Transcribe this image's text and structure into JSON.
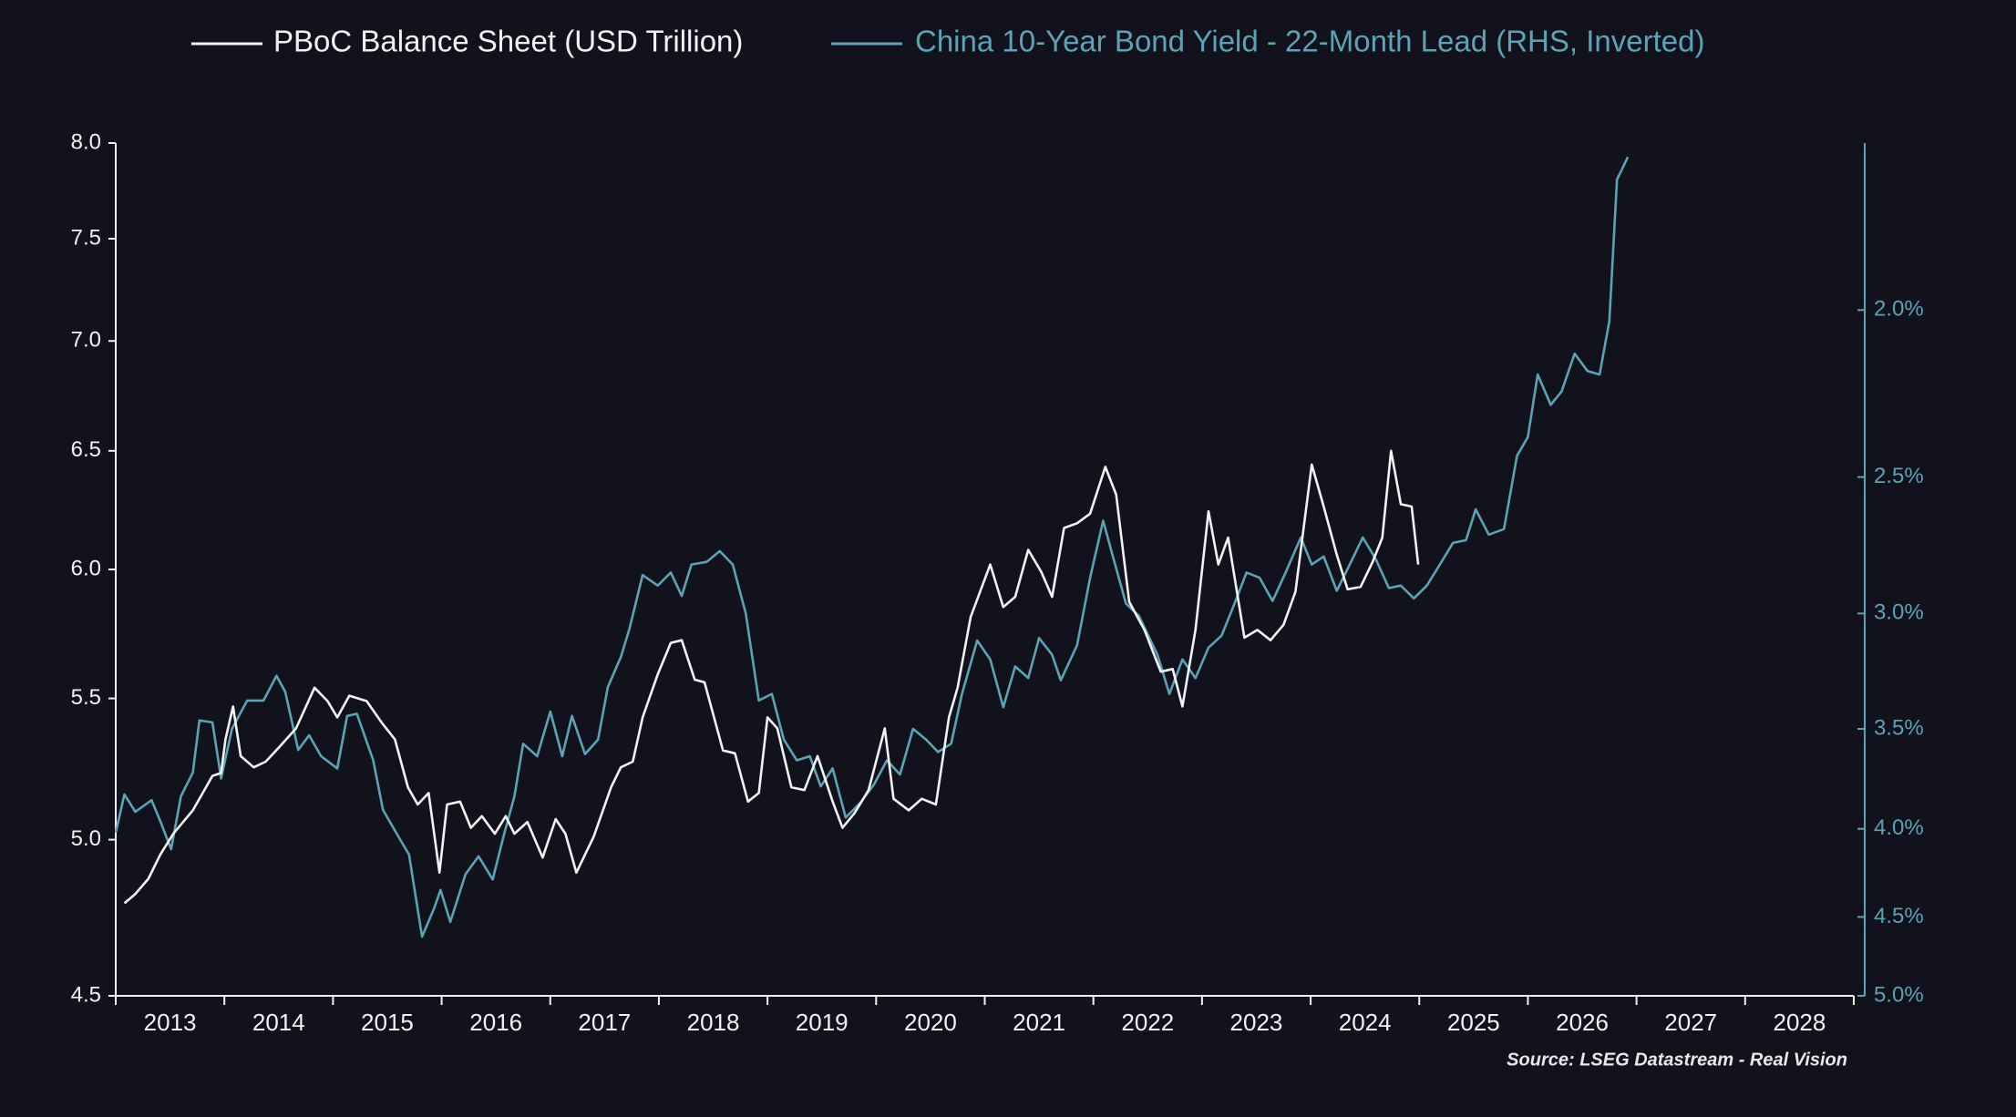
{
  "chart_data": {
    "type": "line",
    "source": "Source: LSEG Datastream - Real Vision",
    "xlim": [
      2013,
      2029
    ],
    "xticks": [
      {
        "value": 2013,
        "label": "2013"
      },
      {
        "value": 2014,
        "label": "2014"
      },
      {
        "value": 2015,
        "label": "2015"
      },
      {
        "value": 2016,
        "label": "2016"
      },
      {
        "value": 2017,
        "label": "2017"
      },
      {
        "value": 2018,
        "label": "2018"
      },
      {
        "value": 2019,
        "label": "2019"
      },
      {
        "value": 2020,
        "label": "2020"
      },
      {
        "value": 2021,
        "label": "2021"
      },
      {
        "value": 2022,
        "label": "2022"
      },
      {
        "value": 2023,
        "label": "2023"
      },
      {
        "value": 2024,
        "label": "2024"
      },
      {
        "value": 2025,
        "label": "2025"
      },
      {
        "value": 2026,
        "label": "2026"
      },
      {
        "value": 2027,
        "label": "2027"
      },
      {
        "value": 2028,
        "label": "2028"
      }
    ],
    "ylim": [
      4.5,
      8.0
    ],
    "ylog": true,
    "yticks": [
      4.5,
      {
        "value": 5.0,
        "label": "5.0"
      },
      5.5,
      {
        "value": 6.0,
        "label": "6.0"
      },
      6.5,
      {
        "value": 7.0,
        "label": "7.0"
      },
      7.5,
      {
        "value": 8.0,
        "label": "8.0"
      }
    ],
    "y2lim": [
      5.0,
      1.6
    ],
    "y2log": true,
    "y2ticks": [
      {
        "value": 2.0,
        "label": "2.0%"
      },
      {
        "value": 2.5,
        "label": "2.5%"
      },
      {
        "value": 3.0,
        "label": "3.0%"
      },
      {
        "value": 3.5,
        "label": "3.5%"
      },
      {
        "value": 4.0,
        "label": "4.0%"
      },
      {
        "value": 4.5,
        "label": "4.5%"
      },
      {
        "value": 5.0,
        "label": "5.0%"
      }
    ],
    "series": [
      {
        "name": "PBoC Balance Sheet (USD Trillion)",
        "color": "#f2f2f2",
        "x": [
          2013.08,
          2013.18,
          2013.3,
          2013.41,
          2013.53,
          2013.71,
          2013.89,
          2013.97,
          2014.01,
          2014.08,
          2014.15,
          2014.27,
          2014.38,
          2014.5,
          2014.66,
          2014.83,
          2014.95,
          2015.04,
          2015.15,
          2015.31,
          2015.45,
          2015.57,
          2015.69,
          2015.78,
          2015.88,
          2015.98,
          2016.05,
          2016.17,
          2016.27,
          2016.37,
          2016.49,
          2016.59,
          2016.67,
          2016.79,
          2016.93,
          2017.05,
          2017.14,
          2017.24,
          2017.4,
          2017.56,
          2017.65,
          2017.76,
          2017.85,
          2017.99,
          2018.11,
          2018.21,
          2018.33,
          2018.42,
          2018.59,
          2018.7,
          2018.82,
          2018.92,
          2019.0,
          2019.09,
          2019.22,
          2019.34,
          2019.46,
          2019.6,
          2019.69,
          2019.8,
          2019.93,
          2020.08,
          2020.16,
          2020.3,
          2020.42,
          2020.55,
          2020.67,
          2020.75,
          2020.87,
          2021.05,
          2021.17,
          2021.28,
          2021.4,
          2021.52,
          2021.62,
          2021.73,
          2021.85,
          2021.97,
          2022.11,
          2022.21,
          2022.33,
          2022.47,
          2022.62,
          2022.73,
          2022.82,
          2022.94,
          2023.06,
          2023.15,
          2023.24,
          2023.39,
          2023.51,
          2023.63,
          2023.75,
          2023.86,
          2024.01,
          2024.12,
          2024.24,
          2024.34,
          2024.46,
          2024.57,
          2024.66,
          2024.74,
          2024.83,
          2024.93,
          2024.99
        ],
        "values": [
          4.79,
          4.82,
          4.87,
          4.95,
          5.02,
          5.1,
          5.22,
          5.23,
          5.35,
          5.47,
          5.29,
          5.25,
          5.27,
          5.32,
          5.39,
          5.54,
          5.49,
          5.43,
          5.51,
          5.49,
          5.41,
          5.35,
          5.18,
          5.12,
          5.16,
          4.89,
          5.12,
          5.13,
          5.04,
          5.08,
          5.02,
          5.08,
          5.02,
          5.06,
          4.94,
          5.07,
          5.02,
          4.89,
          5.01,
          5.18,
          5.25,
          5.27,
          5.43,
          5.59,
          5.71,
          5.72,
          5.57,
          5.56,
          5.31,
          5.3,
          5.13,
          5.16,
          5.43,
          5.39,
          5.18,
          5.17,
          5.29,
          5.13,
          5.04,
          5.09,
          5.17,
          5.39,
          5.14,
          5.1,
          5.14,
          5.12,
          5.43,
          5.54,
          5.81,
          6.02,
          5.85,
          5.89,
          6.08,
          5.99,
          5.89,
          6.17,
          6.19,
          6.23,
          6.43,
          6.31,
          5.87,
          5.76,
          5.6,
          5.61,
          5.47,
          5.76,
          6.24,
          6.02,
          6.13,
          5.73,
          5.76,
          5.72,
          5.78,
          5.91,
          6.44,
          6.26,
          6.06,
          5.92,
          5.93,
          6.03,
          6.13,
          6.5,
          6.27,
          6.26,
          6.02
        ]
      },
      {
        "name": "China 10-Year Bond Yield - 22-Month Lead (RHS, Inverted)",
        "color": "#5ba3b5",
        "axis": "y2",
        "x": [
          2013.0,
          2013.08,
          2013.18,
          2013.33,
          2013.41,
          2013.51,
          2013.6,
          2013.71,
          2013.77,
          2013.89,
          2013.97,
          2014.07,
          2014.21,
          2014.36,
          2014.48,
          2014.56,
          2014.68,
          2014.78,
          2014.89,
          2015.04,
          2015.13,
          2015.22,
          2015.37,
          2015.46,
          2015.6,
          2015.7,
          2015.82,
          2015.93,
          2015.99,
          2016.08,
          2016.22,
          2016.34,
          2016.47,
          2016.57,
          2016.67,
          2016.75,
          2016.88,
          2017.0,
          2017.11,
          2017.2,
          2017.32,
          2017.44,
          2017.53,
          2017.65,
          2017.73,
          2017.85,
          2017.99,
          2018.11,
          2018.21,
          2018.3,
          2018.44,
          2018.56,
          2018.68,
          2018.8,
          2018.92,
          2019.04,
          2019.15,
          2019.27,
          2019.39,
          2019.49,
          2019.6,
          2019.72,
          2019.86,
          2019.98,
          2020.1,
          2020.22,
          2020.34,
          2020.46,
          2020.57,
          2020.69,
          2020.79,
          2020.93,
          2021.05,
          2021.17,
          2021.28,
          2021.4,
          2021.5,
          2021.62,
          2021.7,
          2021.85,
          2021.97,
          2022.09,
          2022.18,
          2022.3,
          2022.42,
          2022.59,
          2022.7,
          2022.82,
          2022.94,
          2023.06,
          2023.18,
          2023.3,
          2023.41,
          2023.53,
          2023.65,
          2023.77,
          2023.91,
          2024.01,
          2024.12,
          2024.24,
          2024.36,
          2024.48,
          2024.6,
          2024.72,
          2024.83,
          2024.95,
          2025.07,
          2025.19,
          2025.31,
          2025.43,
          2025.52,
          2025.64,
          2025.78,
          2025.9,
          2026.0,
          2026.09,
          2026.21,
          2026.31,
          2026.43,
          2026.55,
          2026.66,
          2026.75,
          2026.82,
          2026.92
        ],
        "values": [
          4.02,
          3.82,
          3.91,
          3.85,
          3.96,
          4.11,
          3.83,
          3.71,
          3.46,
          3.47,
          3.74,
          3.5,
          3.37,
          3.37,
          3.26,
          3.33,
          3.6,
          3.53,
          3.63,
          3.69,
          3.44,
          3.43,
          3.65,
          3.9,
          4.04,
          4.14,
          4.62,
          4.45,
          4.34,
          4.53,
          4.25,
          4.15,
          4.28,
          4.04,
          3.83,
          3.57,
          3.63,
          3.42,
          3.63,
          3.44,
          3.62,
          3.55,
          3.31,
          3.18,
          3.06,
          2.85,
          2.89,
          2.84,
          2.93,
          2.81,
          2.8,
          2.76,
          2.81,
          3.0,
          3.37,
          3.34,
          3.55,
          3.65,
          3.63,
          3.78,
          3.69,
          3.94,
          3.86,
          3.77,
          3.65,
          3.72,
          3.5,
          3.55,
          3.61,
          3.57,
          3.34,
          3.11,
          3.19,
          3.4,
          3.22,
          3.27,
          3.1,
          3.17,
          3.28,
          3.13,
          2.86,
          2.65,
          2.78,
          2.96,
          3.01,
          3.17,
          3.34,
          3.19,
          3.27,
          3.14,
          3.09,
          2.96,
          2.84,
          2.86,
          2.95,
          2.84,
          2.71,
          2.81,
          2.78,
          2.91,
          2.81,
          2.71,
          2.79,
          2.9,
          2.89,
          2.94,
          2.89,
          2.81,
          2.73,
          2.72,
          2.61,
          2.7,
          2.68,
          2.43,
          2.37,
          2.18,
          2.27,
          2.23,
          2.12,
          2.17,
          2.18,
          2.03,
          1.68,
          1.63
        ]
      }
    ]
  }
}
